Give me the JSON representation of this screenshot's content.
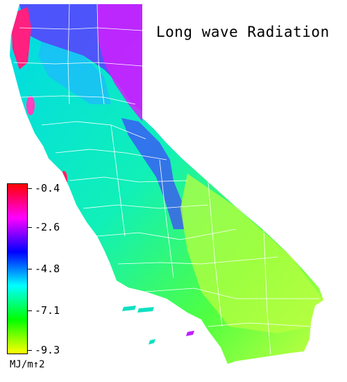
{
  "title": "Long wave Radiation",
  "legend": {
    "units": "MJ/m↑2",
    "ticks": [
      "-0.4",
      "-2.6",
      "-4.8",
      "-7.1",
      "-9.3"
    ],
    "colors": [
      "#ff0000",
      "#ff00ff",
      "#0000ff",
      "#00ffff",
      "#00ff00",
      "#ffff00"
    ]
  },
  "map": {
    "region": "California",
    "palette": {
      "high": "#ff2080",
      "upper": "#c020ff",
      "mid": "#4040ff",
      "cyan": "#00e0e0",
      "aqua": "#20f0b0",
      "green": "#40ff40",
      "lime": "#b0ff40",
      "border": "#ffffff"
    }
  }
}
